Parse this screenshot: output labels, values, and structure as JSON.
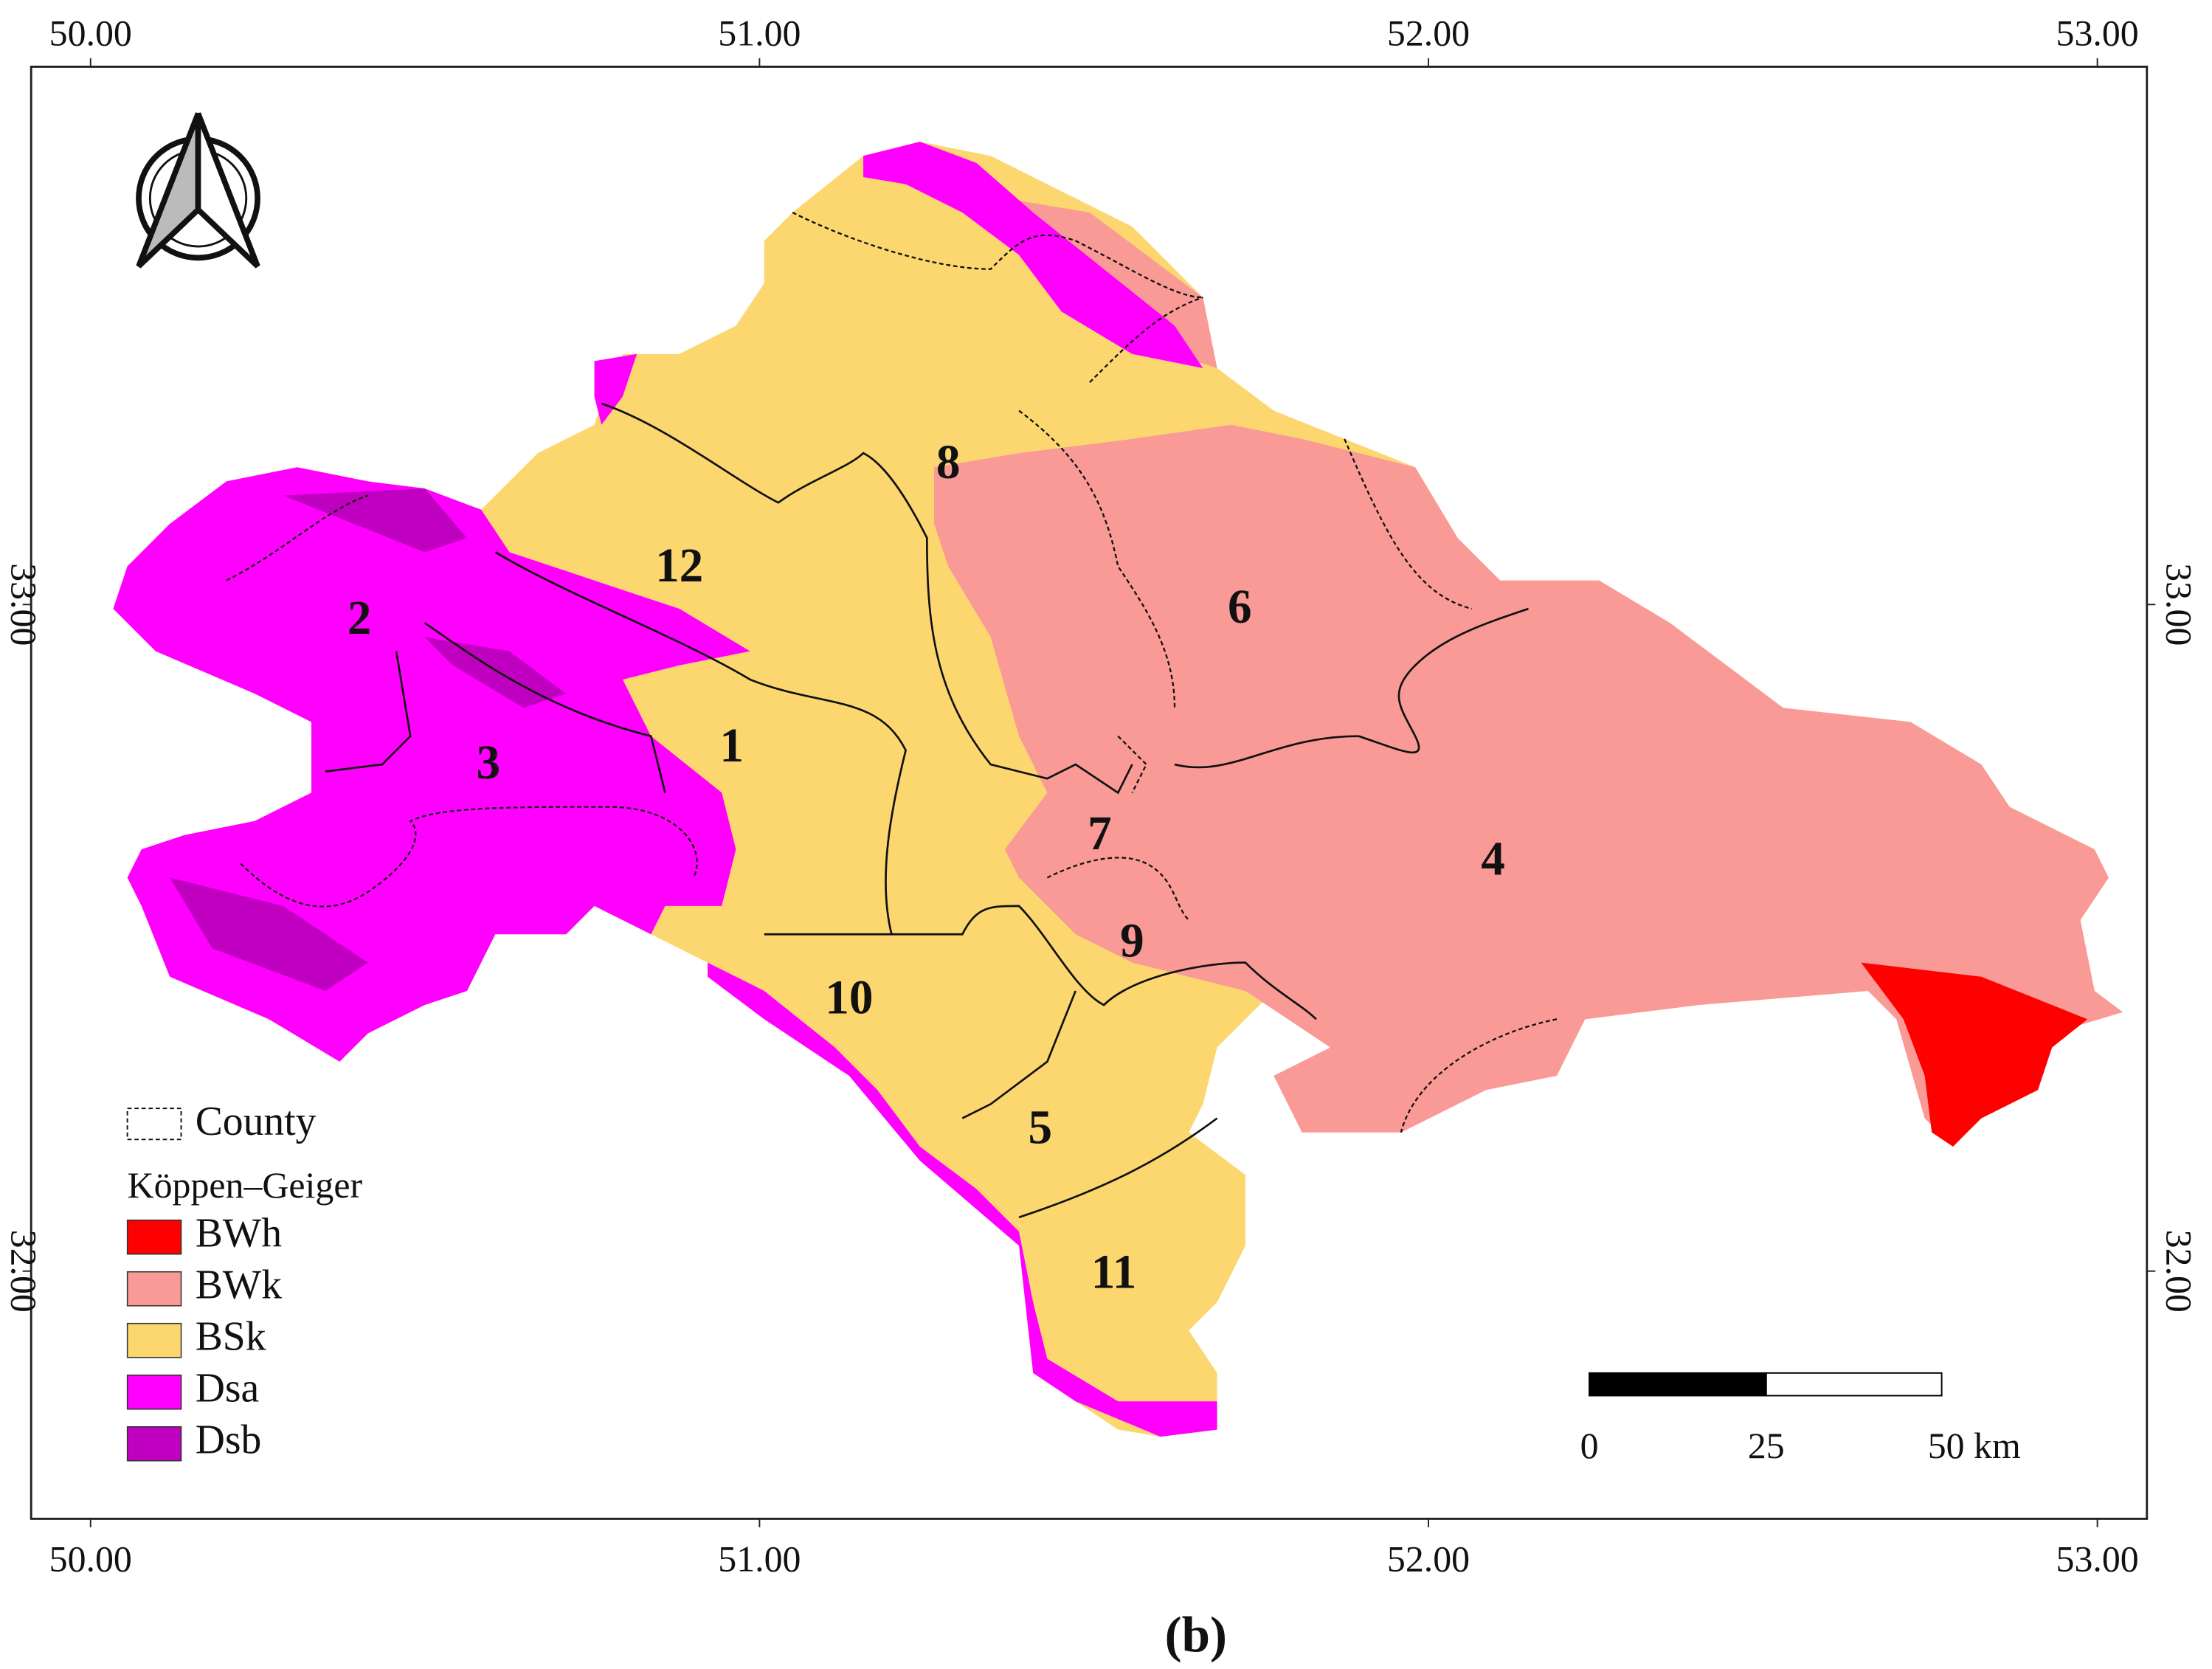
{
  "map": {
    "x_ticks": [
      {
        "value": 50,
        "label": "50.00"
      },
      {
        "value": 51,
        "label": "51.00"
      },
      {
        "value": 52,
        "label": "52.00"
      },
      {
        "value": 53,
        "label": "53.00"
      }
    ],
    "y_ticks": [
      {
        "value": 33,
        "label": "33.00"
      },
      {
        "value": 32,
        "label": "32.00"
      }
    ],
    "counties": [
      {
        "label": "1"
      },
      {
        "label": "2"
      },
      {
        "label": "3"
      },
      {
        "label": "4"
      },
      {
        "label": "5"
      },
      {
        "label": "6"
      },
      {
        "label": "7"
      },
      {
        "label": "8"
      },
      {
        "label": "9"
      },
      {
        "label": "10"
      },
      {
        "label": "11"
      },
      {
        "label": "12"
      }
    ],
    "legend": {
      "county_label": "County",
      "title": "Köppen–Geiger",
      "items": [
        {
          "name": "BWh",
          "color": "#ff0000"
        },
        {
          "name": "BWk",
          "color": "#f99a96"
        },
        {
          "name": "BSk",
          "color": "#fcd770"
        },
        {
          "name": "Dsa",
          "color": "#ff00ff"
        },
        {
          "name": "Dsb",
          "color": "#c000c0"
        }
      ]
    },
    "scale_bar": [
      "0",
      "25",
      "50 km"
    ],
    "caption": "(b)"
  }
}
